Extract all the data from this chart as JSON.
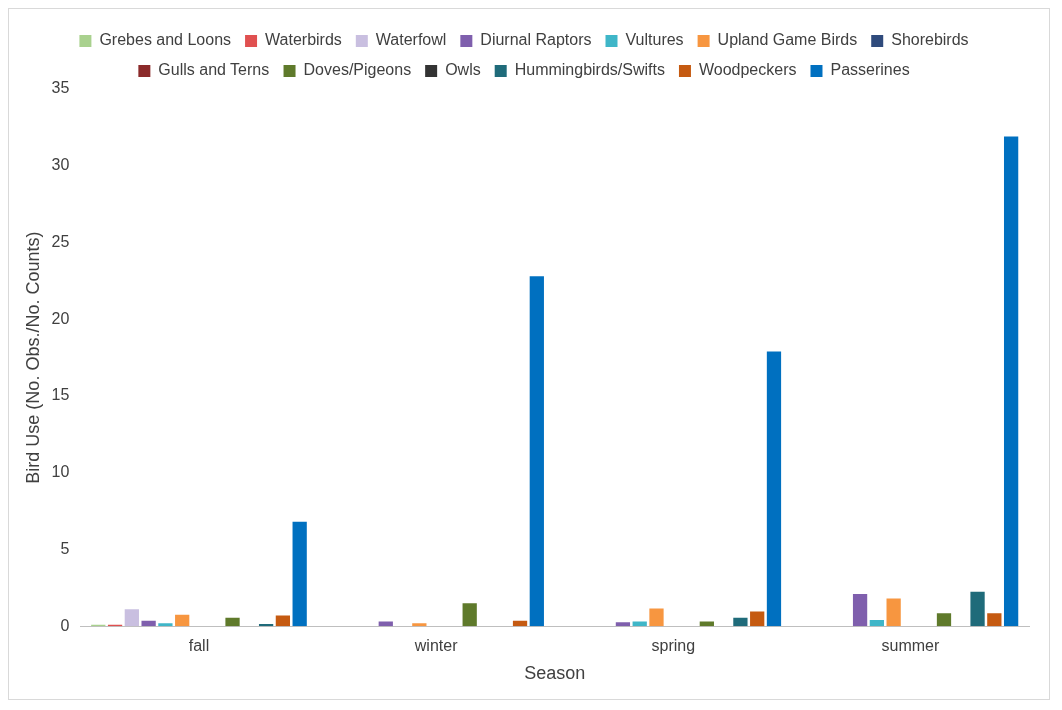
{
  "chart_data": {
    "type": "bar",
    "xlabel": "Season",
    "ylabel": "Bird Use (No. Obs./No. Counts)",
    "categories": [
      "fall",
      "winter",
      "spring",
      "summer"
    ],
    "series": [
      {
        "name": "Grebes and Loons",
        "color": "#a9d18e",
        "values": [
          0.1,
          0,
          0,
          0
        ]
      },
      {
        "name": "Waterbirds",
        "color": "#e05050",
        "values": [
          0.1,
          0,
          0,
          0
        ]
      },
      {
        "name": "Waterfowl",
        "color": "#c9bfe0",
        "values": [
          1.1,
          0,
          0,
          0
        ]
      },
      {
        "name": "Diurnal Raptors",
        "color": "#7f5fad",
        "values": [
          0.35,
          0.3,
          0.25,
          2.1
        ]
      },
      {
        "name": "Vultures",
        "color": "#3fb6c8",
        "values": [
          0.2,
          0,
          0.3,
          0.4
        ]
      },
      {
        "name": "Upland Game Birds",
        "color": "#f79640",
        "values": [
          0.75,
          0.2,
          1.15,
          1.8
        ]
      },
      {
        "name": "Shorebirds",
        "color": "#2f4b7c",
        "values": [
          0,
          0,
          0,
          0
        ]
      },
      {
        "name": "Gulls and Terns",
        "color": "#8b2a2a",
        "values": [
          0,
          0,
          0,
          0
        ]
      },
      {
        "name": "Doves/Pigeons",
        "color": "#5f7a2b",
        "values": [
          0.55,
          1.5,
          0.3,
          0.85
        ]
      },
      {
        "name": "Owls",
        "color": "#333333",
        "values": [
          0,
          0,
          0,
          0
        ]
      },
      {
        "name": "Hummingbirds/Swifts",
        "color": "#1f6b7a",
        "values": [
          0.15,
          0,
          0.55,
          2.25
        ]
      },
      {
        "name": "Woodpeckers",
        "color": "#c55a11",
        "values": [
          0.7,
          0.35,
          0.95,
          0.85
        ]
      },
      {
        "name": "Passerines",
        "color": "#0070c0",
        "values": [
          6.8,
          22.8,
          17.9,
          31.9
        ]
      }
    ],
    "ylim": [
      0,
      35
    ],
    "yticks": [
      0,
      5,
      10,
      15,
      20,
      25,
      30,
      35
    ],
    "grid": false,
    "legend": "top"
  }
}
